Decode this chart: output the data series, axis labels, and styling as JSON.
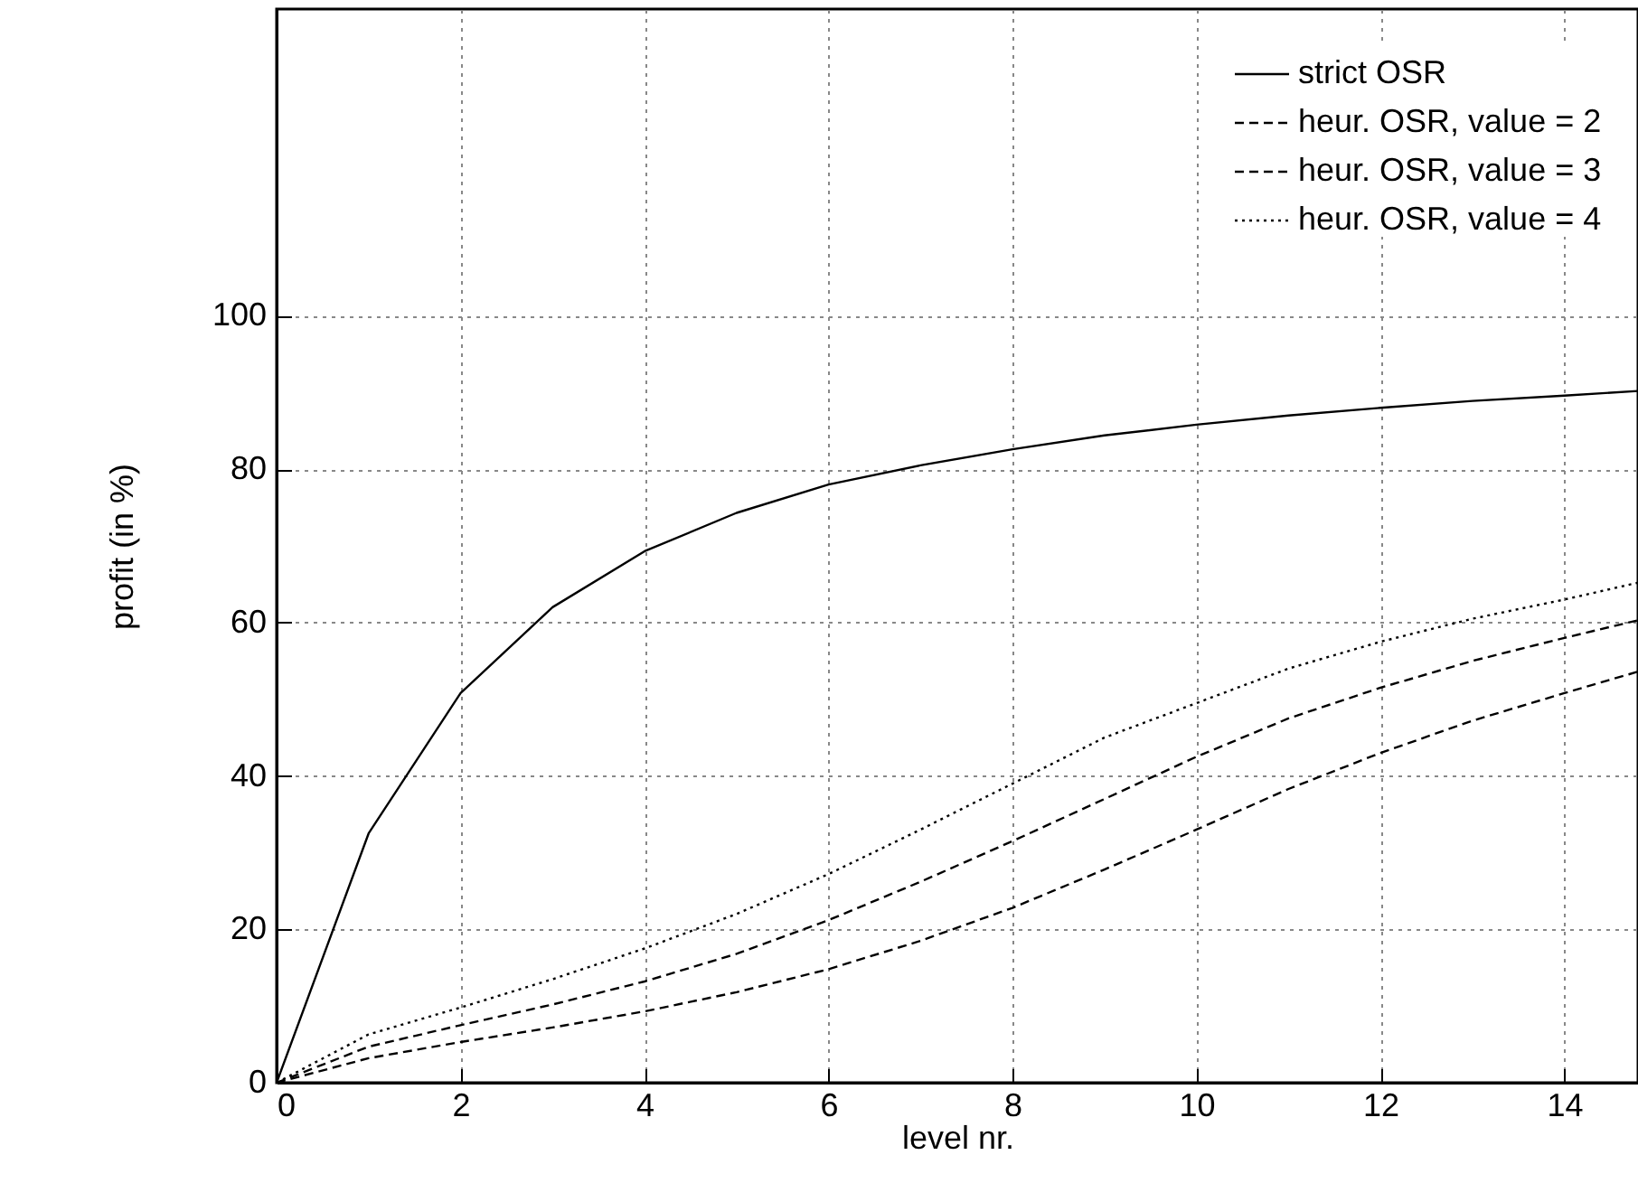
{
  "chart_data": {
    "type": "line",
    "xlabel": "level nr.",
    "ylabel": "profit (in %)",
    "x": [
      0,
      1,
      2,
      3,
      4,
      5,
      6,
      7,
      8,
      9,
      10,
      11,
      12,
      13,
      14,
      14.8
    ],
    "series": [
      {
        "name": "strict OSR",
        "color": "#000000",
        "line_style": "solid",
        "values": [
          0,
          32.5,
          50.8,
          62,
          69.3,
          74.3,
          78,
          80.5,
          82.6,
          84.4,
          85.8,
          87,
          88,
          88.9,
          89.6,
          90.2
        ]
      },
      {
        "name": "heur. OSR, value = 2",
        "color": "#000000",
        "line_style": "dashed",
        "values": [
          0,
          3.2,
          5.3,
          7.2,
          9.3,
          11.8,
          14.8,
          18.5,
          22.8,
          27.8,
          33,
          38.3,
          43,
          47.2,
          50.8,
          53.6
        ]
      },
      {
        "name": "heur. OSR, value = 3",
        "color": "#000000",
        "line_style": "dashed",
        "values": [
          0,
          4.7,
          7.5,
          10.2,
          13.2,
          16.8,
          21.2,
          26.2,
          31.5,
          37,
          42.5,
          47.5,
          51.5,
          55,
          58,
          60.3
        ]
      },
      {
        "name": "heur. OSR, value = 4",
        "color": "#000000",
        "line_style": "dotted",
        "values": [
          0,
          6.3,
          9.8,
          13.5,
          17.5,
          22,
          27.2,
          33,
          39,
          45,
          49.5,
          54,
          57.5,
          60.5,
          63,
          65.2
        ]
      }
    ],
    "xlim": [
      0,
      14.8
    ],
    "xticks": [
      0,
      2,
      4,
      6,
      8,
      10,
      12,
      14
    ],
    "ylim": [
      0,
      140
    ],
    "yticks": [
      0,
      20,
      40,
      60,
      80,
      100
    ],
    "grid": true,
    "legend": "top right"
  }
}
